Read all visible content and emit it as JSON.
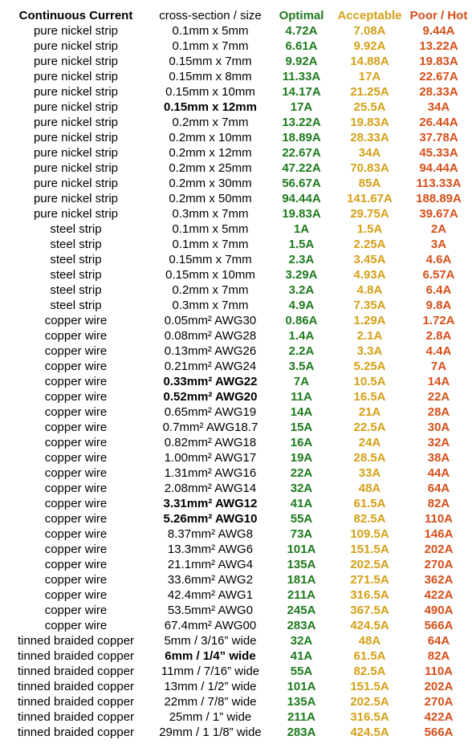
{
  "colors": {
    "optimal": "#1e7a1e",
    "acceptable": "#d4a017",
    "poor": "#d64f1a"
  },
  "header": {
    "type": "Continuous Current",
    "size": "cross-section / size",
    "optimal": "Optimal",
    "acceptable": "Acceptable",
    "poor": "Poor / Hot"
  },
  "rows": [
    {
      "type": "pure nickel strip",
      "size": "0.1mm x 5mm",
      "optimal": "4.72A",
      "acceptable": "7.08A",
      "poor": "9.44A",
      "bold": false
    },
    {
      "type": "pure nickel strip",
      "size": "0.1mm x 7mm",
      "optimal": "6.61A",
      "acceptable": "9.92A",
      "poor": "13.22A",
      "bold": false
    },
    {
      "type": "pure nickel strip",
      "size": "0.15mm x 7mm",
      "optimal": "9.92A",
      "acceptable": "14.88A",
      "poor": "19.83A",
      "bold": false
    },
    {
      "type": "pure nickel strip",
      "size": "0.15mm x 8mm",
      "optimal": "11.33A",
      "acceptable": "17A",
      "poor": "22.67A",
      "bold": false
    },
    {
      "type": "pure nickel strip",
      "size": "0.15mm x 10mm",
      "optimal": "14.17A",
      "acceptable": "21.25A",
      "poor": "28.33A",
      "bold": false
    },
    {
      "type": "pure nickel strip",
      "size": "0.15mm x 12mm",
      "optimal": "17A",
      "acceptable": "25.5A",
      "poor": "34A",
      "bold": true
    },
    {
      "type": "pure nickel strip",
      "size": "0.2mm x 7mm",
      "optimal": "13.22A",
      "acceptable": "19.83A",
      "poor": "26.44A",
      "bold": false
    },
    {
      "type": "pure nickel strip",
      "size": "0.2mm x 10mm",
      "optimal": "18.89A",
      "acceptable": "28.33A",
      "poor": "37.78A",
      "bold": false
    },
    {
      "type": "pure nickel strip",
      "size": "0.2mm x 12mm",
      "optimal": "22.67A",
      "acceptable": "34A",
      "poor": "45.33A",
      "bold": false
    },
    {
      "type": "pure nickel strip",
      "size": "0.2mm x 25mm",
      "optimal": "47.22A",
      "acceptable": "70.83A",
      "poor": "94.44A",
      "bold": false
    },
    {
      "type": "pure nickel strip",
      "size": "0.2mm x 30mm",
      "optimal": "56.67A",
      "acceptable": "85A",
      "poor": "113.33A",
      "bold": false
    },
    {
      "type": "pure nickel strip",
      "size": "0.2mm x 50mm",
      "optimal": "94.44A",
      "acceptable": "141.67A",
      "poor": "188.89A",
      "bold": false
    },
    {
      "type": "pure nickel strip",
      "size": "0.3mm x 7mm",
      "optimal": "19.83A",
      "acceptable": "29.75A",
      "poor": "39.67A",
      "bold": false
    },
    {
      "type": "steel strip",
      "size": "0.1mm x 5mm",
      "optimal": "1A",
      "acceptable": "1.5A",
      "poor": "2A",
      "bold": false
    },
    {
      "type": "steel strip",
      "size": "0.1mm x 7mm",
      "optimal": "1.5A",
      "acceptable": "2.25A",
      "poor": "3A",
      "bold": false
    },
    {
      "type": "steel strip",
      "size": "0.15mm x 7mm",
      "optimal": "2.3A",
      "acceptable": "3.45A",
      "poor": "4.6A",
      "bold": false
    },
    {
      "type": "steel strip",
      "size": "0.15mm x 10mm",
      "optimal": "3.29A",
      "acceptable": "4.93A",
      "poor": "6.57A",
      "bold": false
    },
    {
      "type": "steel strip",
      "size": "0.2mm x 7mm",
      "optimal": "3.2A",
      "acceptable": "4.8A",
      "poor": "6.4A",
      "bold": false
    },
    {
      "type": "steel strip",
      "size": "0.3mm x 7mm",
      "optimal": "4.9A",
      "acceptable": "7.35A",
      "poor": "9.8A",
      "bold": false
    },
    {
      "type": "copper wire",
      "size": "0.05mm² AWG30",
      "optimal": "0.86A",
      "acceptable": "1.29A",
      "poor": "1.72A",
      "bold": false
    },
    {
      "type": "copper wire",
      "size": "0.08mm² AWG28",
      "optimal": "1.4A",
      "acceptable": "2.1A",
      "poor": "2.8A",
      "bold": false
    },
    {
      "type": "copper wire",
      "size": "0.13mm² AWG26",
      "optimal": "2.2A",
      "acceptable": "3.3A",
      "poor": "4.4A",
      "bold": false
    },
    {
      "type": "copper wire",
      "size": "0.21mm² AWG24",
      "optimal": "3.5A",
      "acceptable": "5.25A",
      "poor": "7A",
      "bold": false
    },
    {
      "type": "copper wire",
      "size": "0.33mm² AWG22",
      "optimal": "7A",
      "acceptable": "10.5A",
      "poor": "14A",
      "bold": true
    },
    {
      "type": "copper wire",
      "size": "0.52mm² AWG20",
      "optimal": "11A",
      "acceptable": "16.5A",
      "poor": "22A",
      "bold": true
    },
    {
      "type": "copper wire",
      "size": "0.65mm² AWG19",
      "optimal": "14A",
      "acceptable": "21A",
      "poor": "28A",
      "bold": false
    },
    {
      "type": "copper wire",
      "size": "0.7mm² AWG18.7",
      "optimal": "15A",
      "acceptable": "22.5A",
      "poor": "30A",
      "bold": false
    },
    {
      "type": "copper wire",
      "size": "0.82mm² AWG18",
      "optimal": "16A",
      "acceptable": "24A",
      "poor": "32A",
      "bold": false
    },
    {
      "type": "copper wire",
      "size": "1.00mm² AWG17",
      "optimal": "19A",
      "acceptable": "28.5A",
      "poor": "38A",
      "bold": false
    },
    {
      "type": "copper wire",
      "size": "1.31mm² AWG16",
      "optimal": "22A",
      "acceptable": "33A",
      "poor": "44A",
      "bold": false
    },
    {
      "type": "copper wire",
      "size": "2.08mm² AWG14",
      "optimal": "32A",
      "acceptable": "48A",
      "poor": "64A",
      "bold": false
    },
    {
      "type": "copper wire",
      "size": "3.31mm² AWG12",
      "optimal": "41A",
      "acceptable": "61.5A",
      "poor": "82A",
      "bold": true
    },
    {
      "type": "copper wire",
      "size": "5.26mm² AWG10",
      "optimal": "55A",
      "acceptable": "82.5A",
      "poor": "110A",
      "bold": true
    },
    {
      "type": "copper wire",
      "size": "8.37mm² AWG8",
      "optimal": "73A",
      "acceptable": "109.5A",
      "poor": "146A",
      "bold": false
    },
    {
      "type": "copper wire",
      "size": "13.3mm² AWG6",
      "optimal": "101A",
      "acceptable": "151.5A",
      "poor": "202A",
      "bold": false
    },
    {
      "type": "copper wire",
      "size": "21.1mm² AWG4",
      "optimal": "135A",
      "acceptable": "202.5A",
      "poor": "270A",
      "bold": false
    },
    {
      "type": "copper wire",
      "size": "33.6mm² AWG2",
      "optimal": "181A",
      "acceptable": "271.5A",
      "poor": "362A",
      "bold": false
    },
    {
      "type": "copper wire",
      "size": "42.4mm² AWG1",
      "optimal": "211A",
      "acceptable": "316.5A",
      "poor": "422A",
      "bold": false
    },
    {
      "type": "copper wire",
      "size": "53.5mm² AWG0",
      "optimal": "245A",
      "acceptable": "367.5A",
      "poor": "490A",
      "bold": false
    },
    {
      "type": "copper wire",
      "size": "67.4mm² AWG00",
      "optimal": "283A",
      "acceptable": "424.5A",
      "poor": "566A",
      "bold": false
    },
    {
      "type": "tinned braided copper",
      "size": "5mm / 3/16” wide",
      "optimal": "32A",
      "acceptable": "48A",
      "poor": "64A",
      "bold": false
    },
    {
      "type": "tinned braided copper",
      "size": "6mm / 1/4” wide",
      "optimal": "41A",
      "acceptable": "61.5A",
      "poor": "82A",
      "bold": true
    },
    {
      "type": "tinned braided copper",
      "size": "11mm / 7/16” wide",
      "optimal": "55A",
      "acceptable": "82.5A",
      "poor": "110A",
      "bold": false
    },
    {
      "type": "tinned braided copper",
      "size": "13mm / 1/2” wide",
      "optimal": "101A",
      "acceptable": "151.5A",
      "poor": "202A",
      "bold": false
    },
    {
      "type": "tinned braided copper",
      "size": "22mm / 7/8” wide",
      "optimal": "135A",
      "acceptable": "202.5A",
      "poor": "270A",
      "bold": false
    },
    {
      "type": "tinned braided copper",
      "size": "25mm / 1” wide",
      "optimal": "211A",
      "acceptable": "316.5A",
      "poor": "422A",
      "bold": false
    },
    {
      "type": "tinned braided copper",
      "size": "29mm / 1 1/8” wide",
      "optimal": "283A",
      "acceptable": "424.5A",
      "poor": "566A",
      "bold": false
    }
  ]
}
